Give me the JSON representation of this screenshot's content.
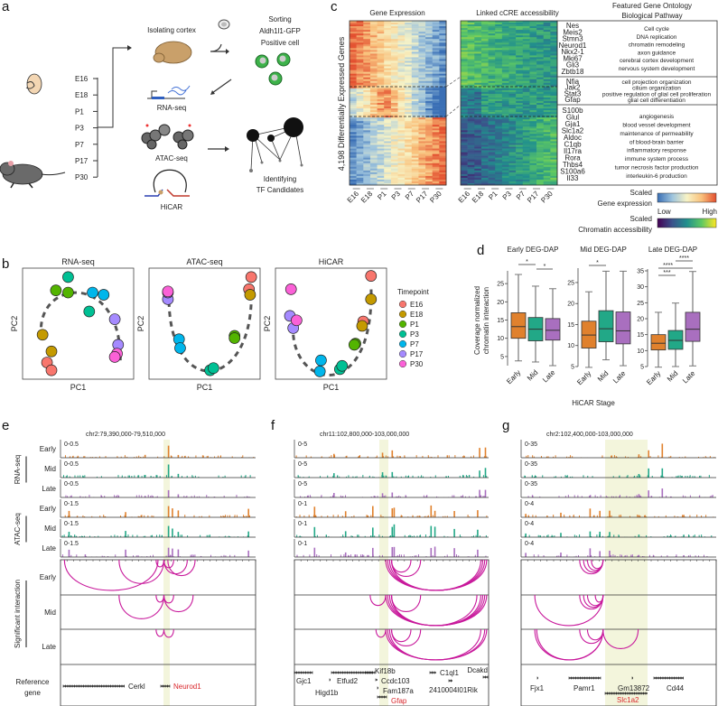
{
  "panel_labels": {
    "a": "a",
    "b": "b",
    "c": "c",
    "d": "d",
    "e": "e",
    "f": "f",
    "g": "g"
  },
  "panel_a": {
    "timepoints": [
      "E16",
      "E18",
      "P1",
      "P3",
      "P7",
      "P17",
      "P30"
    ],
    "isolating": "Isolating cortex",
    "sorting": [
      "Sorting",
      "Aldh1l1-GFP",
      "Positive cell"
    ],
    "assays": [
      "RNA-seq",
      "ATAC-seq",
      "HiCAR"
    ],
    "identifying": [
      "Identifying",
      "TF Candidates"
    ]
  },
  "panel_b": {
    "plots": [
      {
        "title": "RNA-seq"
      },
      {
        "title": "ATAC-seq"
      },
      {
        "title": "HiCAR"
      }
    ],
    "xlabel": "PC1",
    "ylabel": "PC2",
    "legend": {
      "title": "Timepoint",
      "items": [
        {
          "label": "E16",
          "color": "#f8766d"
        },
        {
          "label": "E18",
          "color": "#c49a00"
        },
        {
          "label": "P1",
          "color": "#53b400"
        },
        {
          "label": "P3",
          "color": "#00c094"
        },
        {
          "label": "P7",
          "color": "#00b6eb"
        },
        {
          "label": "P17",
          "color": "#a58aff"
        },
        {
          "label": "P30",
          "color": "#fb61d7"
        }
      ]
    }
  },
  "panel_c": {
    "title_expr": "Gene Expression",
    "title_access": "Linked cCRE accessibility",
    "ylabel": "4,198 Differentially Expressed Genes",
    "go_title": [
      "Featured Gene Ontology",
      "Biological Pathway"
    ],
    "columns": [
      "E16",
      "E18",
      "P1",
      "P3",
      "P7",
      "P17",
      "P30"
    ],
    "groups": [
      {
        "genes": [
          "Nes",
          "Meis2",
          "Stmn3",
          "Neurod1",
          "Nkx2-1",
          "Mki67",
          "Gli3",
          "Zbtb18"
        ],
        "pathways": [
          "Cell cycle",
          "DNA replication",
          "chromatin remodeling",
          "axon guidance",
          "cerebral cortex development",
          "nervous system development"
        ]
      },
      {
        "genes": [
          "Nfia",
          "Jak2",
          "Stat3",
          "Gfap"
        ],
        "pathways": [
          "cell projection organization",
          "cilium organization",
          "positive regulation of glial cell proliferation",
          "glial cell differentiation"
        ]
      },
      {
        "genes": [
          "S100b",
          "Glul",
          "Gja1",
          "Slc1a2",
          "Aldoc",
          "C1qb",
          "Il17ra",
          "Rora",
          "Thbs4",
          "S100a6",
          "Il33"
        ],
        "pathways": [
          "angiogenesis",
          "blood vessel development",
          "maintenance of permeability",
          "of blood-brain barrier",
          "inflammatory response",
          "immune system process",
          "tumor necrosis factor production",
          "interleukin-6 production"
        ]
      }
    ],
    "colorbar_expr": [
      "Scaled",
      "Gene expression"
    ],
    "colorbar_access": [
      "Scaled",
      "Chromatin accessibility"
    ],
    "low": "Low",
    "high": "High",
    "expr_colors": [
      "#3a6fb5",
      "#9dc3dd",
      "#f7f3c6",
      "#f9c17c",
      "#e34f2f"
    ],
    "access_colors": [
      "#440154",
      "#3b528b",
      "#21908d",
      "#5dc863",
      "#fde725"
    ]
  },
  "chart_data": {
    "type": "box",
    "ylabel": "Coverage normalized chromatin interaction",
    "xlabel": "HiCAR Stage",
    "categories": [
      "Early",
      "Mid",
      "Late"
    ],
    "colors": {
      "Early": "#e0812d",
      "Mid": "#22a887",
      "Late": "#a96fbf"
    },
    "plots": [
      {
        "title": "Early DEG-DAP",
        "ylim": [
          2.5,
          28
        ],
        "yticks": [
          5,
          10,
          15,
          20,
          25
        ],
        "boxes": [
          {
            "min": 3.8,
            "q1": 10,
            "median": 13.2,
            "q3": 17,
            "max": 27.5
          },
          {
            "min": 3.5,
            "q1": 9.3,
            "median": 12.5,
            "q3": 15.7,
            "max": 24.3
          },
          {
            "min": 2.5,
            "q1": 9.5,
            "median": 12.2,
            "q3": 15.4,
            "max": 23.6
          }
        ],
        "significance": [
          {
            "pair": [
              "Early",
              "Mid"
            ],
            "label": "*"
          },
          {
            "pair": [
              "Mid",
              "Late"
            ],
            "label": "*"
          }
        ]
      },
      {
        "title": "Mid DEG-DAP",
        "ylim": [
          5,
          28
        ],
        "yticks": [
          5,
          10,
          15,
          20,
          25
        ],
        "boxes": [
          {
            "min": 4.8,
            "q1": 9.4,
            "median": 12.5,
            "q3": 15.8,
            "max": 22.8
          },
          {
            "min": 6.6,
            "q1": 10.9,
            "median": 14,
            "q3": 18.3,
            "max": 27.7
          },
          {
            "min": 5.2,
            "q1": 10.4,
            "median": 13.5,
            "q3": 18,
            "max": 27.7
          }
        ],
        "significance": [
          {
            "pair": [
              "Early",
              "Mid"
            ],
            "label": "*"
          }
        ]
      },
      {
        "title": "Late DEG-DAP",
        "ylim": [
          5,
          35
        ],
        "yticks": [
          5,
          10,
          15,
          20,
          25,
          30,
          35
        ],
        "boxes": [
          {
            "min": 4.8,
            "q1": 10.2,
            "median": 12.3,
            "q3": 15,
            "max": 22
          },
          {
            "min": 5,
            "q1": 10.4,
            "median": 13.2,
            "q3": 16.3,
            "max": 24.9
          },
          {
            "min": 5.2,
            "q1": 12.9,
            "median": 16.7,
            "q3": 22,
            "max": 34.8
          }
        ],
        "significance": [
          {
            "pair": [
              "Early",
              "Mid"
            ],
            "label": "***"
          },
          {
            "pair": [
              "Early",
              "Late"
            ],
            "label": "****"
          },
          {
            "pair": [
              "Mid",
              "Late"
            ],
            "label": "****"
          }
        ]
      }
    ]
  },
  "tracks": {
    "group_rna": "RNA-seq",
    "group_atac": "ATAC-seq",
    "group_interaction": "Significant interaction",
    "reference": [
      "Reference",
      "gene"
    ],
    "stages": [
      "Early",
      "Mid",
      "Late"
    ],
    "stage_colors": [
      "#e0812d",
      "#22a887",
      "#a96fbf"
    ],
    "arc_color": "#c8189b",
    "highlight_color": "#f3f5dc",
    "panels": [
      {
        "region": "chr2:79,390,000-79,510,000",
        "rna_scale": "0-0.5",
        "atac_scale": "0-1.5",
        "genes": [
          {
            "name": "Cerkl",
            "highlight": false
          },
          {
            "name": "Neurod1",
            "highlight": true
          }
        ]
      },
      {
        "region": "chr11:102,800,000-103,000,000",
        "rna_scale": "0-5",
        "atac_scale": "0-1",
        "genes": [
          {
            "name": "Gjc1",
            "highlight": false
          },
          {
            "name": "Higd1b",
            "highlight": false
          },
          {
            "name": "Etfud2",
            "highlight": false
          },
          {
            "name": "Kif18b",
            "highlight": false
          },
          {
            "name": "Ccdc103",
            "highlight": false
          },
          {
            "name": "Fam187a",
            "highlight": false
          },
          {
            "name": "Gfap",
            "highlight": true
          },
          {
            "name": "C1ql1",
            "highlight": false
          },
          {
            "name": "2410004I01Rik",
            "highlight": false
          },
          {
            "name": "Dcakd",
            "highlight": false
          }
        ]
      },
      {
        "region": "chr2:102,400,000-103,000,000",
        "rna_scale": "0-35",
        "atac_scale": "0-4",
        "genes": [
          {
            "name": "Fjx1",
            "highlight": false
          },
          {
            "name": "Pamr1",
            "highlight": false
          },
          {
            "name": "Gm13872",
            "highlight": false
          },
          {
            "name": "Cd44",
            "highlight": false
          },
          {
            "name": "Slc1a2",
            "highlight": true
          }
        ]
      }
    ]
  }
}
